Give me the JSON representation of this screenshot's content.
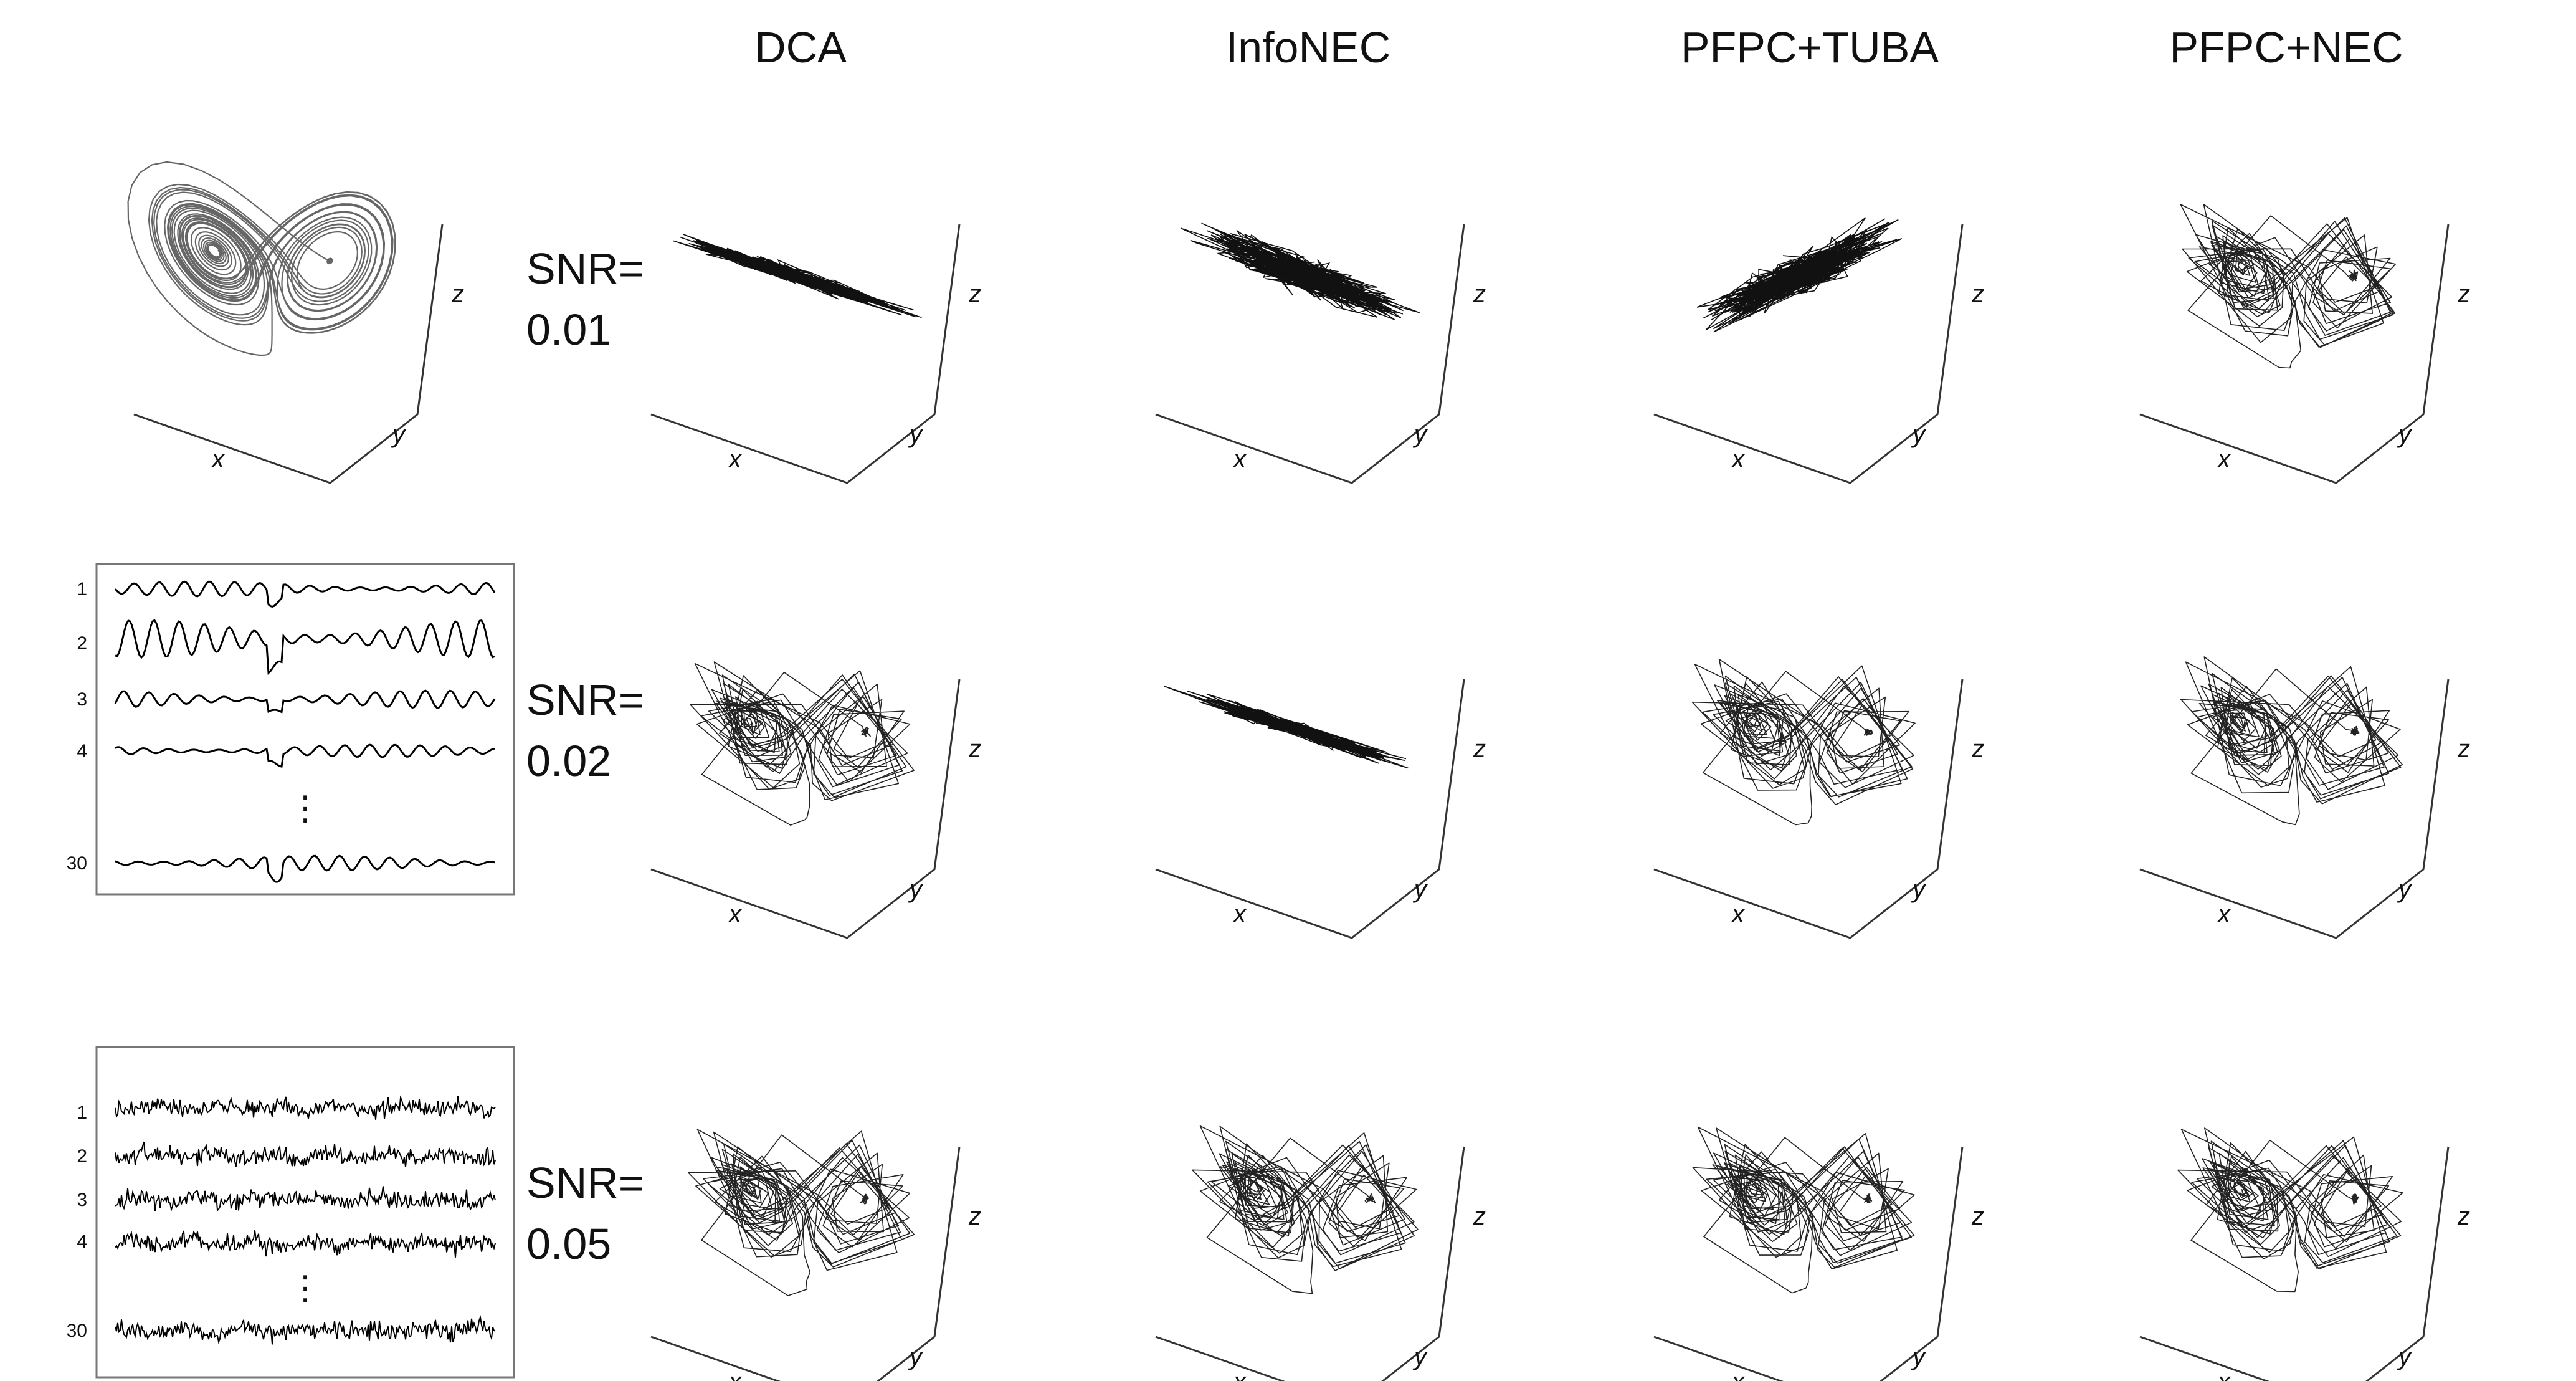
{
  "figure": {
    "method_titles": [
      "DCA",
      "InfoNEC",
      "PFPC+TUBA",
      "PFPC+NEC"
    ],
    "snr_rows": [
      {
        "snr_label": "SNR=",
        "snr_value": "0.01"
      },
      {
        "snr_label": "SNR=",
        "snr_value": "0.02"
      },
      {
        "snr_label": "SNR=",
        "snr_value": "0.05"
      }
    ],
    "axis_labels": {
      "x": "x",
      "y": "y",
      "z": "z"
    },
    "reference_attractor": "Lorenz attractor (ground truth latent)",
    "panels": [
      [
        "line",
        "cloud",
        "cloud",
        "butterfly"
      ],
      [
        "butterfly",
        "line",
        "butterfly",
        "butterfly"
      ],
      [
        "butterfly",
        "butterfly",
        "butterfly",
        "butterfly"
      ]
    ],
    "trace_boxes": [
      {
        "channel_labels": [
          "1",
          "2",
          "3",
          "4",
          "30"
        ],
        "ellipsis": "⋮",
        "style": "smooth"
      },
      {
        "channel_labels": [
          "1",
          "2",
          "3",
          "4",
          "30"
        ],
        "ellipsis": "⋮",
        "style": "noisy"
      }
    ]
  }
}
